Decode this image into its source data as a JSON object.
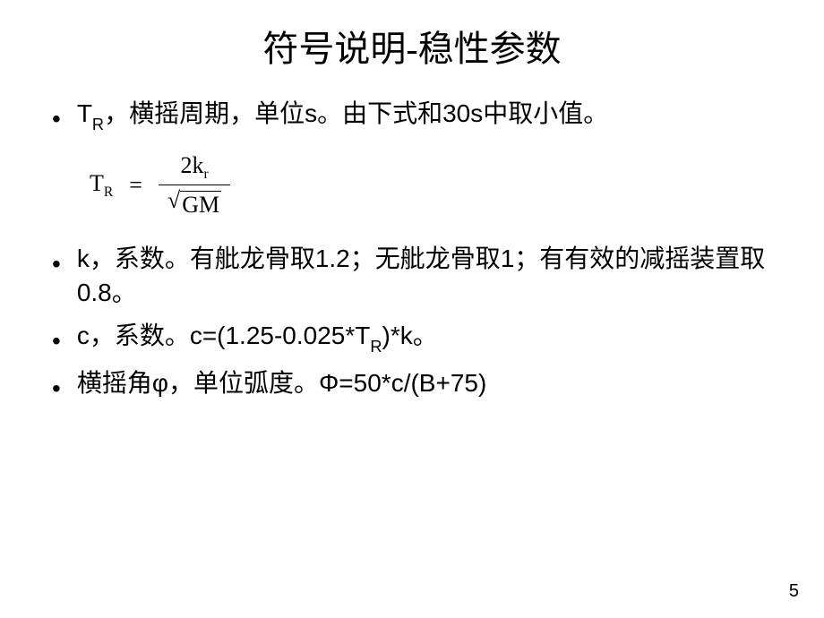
{
  "title": "符号说明-稳性参数",
  "bullets": {
    "b1": {
      "symbol": "T",
      "sub": "R",
      "text": "，横摇周期，单位s。由下式和30s中取小值。"
    },
    "b2": {
      "full": "k，系数。有舭龙骨取1.2；无舭龙骨取1；有有效的减摇装置取0.8。"
    },
    "b3": {
      "pre": "c，系数。c=(1.25-0.025*T",
      "sub": "R",
      "post": ")*k。"
    },
    "b4": {
      "full": "横摇角φ，单位弧度。Φ=50*c/(B+75)"
    }
  },
  "formula": {
    "left_sym": "T",
    "left_sub": "R",
    "eq": "=",
    "num_coef": "2k",
    "num_sub": "r",
    "den_inner": "GM"
  },
  "pageNumber": "5"
}
